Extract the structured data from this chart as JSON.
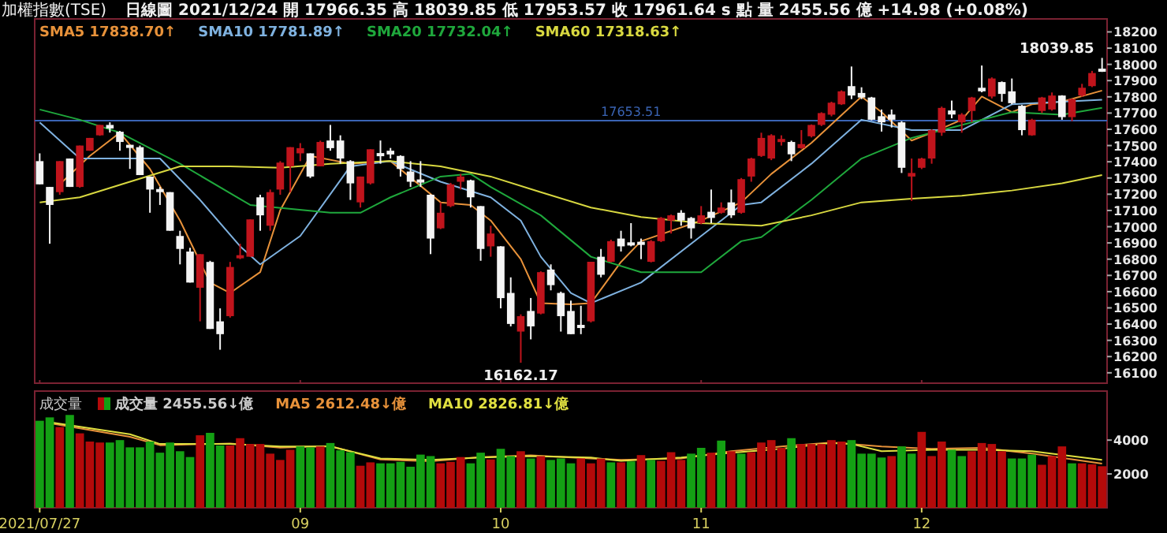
{
  "chart_data": [
    {
      "type": "candlestick",
      "title": "加權指數(TSE)",
      "subtitle": "日線圖  2021/12/24  開 17966.35  高 18039.85  低 17953.57  收 17961.64  s 點  量 2455.56 億  +14.98 (+0.08%)",
      "tick_labels": "y",
      "legend": "top left",
      "categories": [
        "2021/07/27",
        null,
        null,
        null,
        null,
        null,
        null,
        null,
        null,
        null,
        null,
        null,
        null,
        null,
        null,
        null,
        null,
        null,
        null,
        null,
        null,
        null,
        null,
        null,
        null,
        null,
        "09",
        null,
        null,
        null,
        null,
        null,
        null,
        null,
        null,
        null,
        null,
        null,
        null,
        null,
        null,
        null,
        null,
        null,
        null,
        null,
        "10",
        null,
        null,
        null,
        null,
        null,
        null,
        null,
        null,
        null,
        null,
        null,
        null,
        null,
        null,
        null,
        null,
        null,
        null,
        null,
        "11",
        null,
        null,
        null,
        null,
        null,
        null,
        null,
        null,
        null,
        null,
        null,
        null,
        null,
        null,
        null,
        null,
        null,
        null,
        null,
        null,
        null,
        "12",
        null,
        null,
        null,
        null,
        null,
        null,
        null,
        null,
        null,
        null,
        null,
        null,
        null,
        null,
        null,
        null,
        null,
        null
      ],
      "ylim": [
        16036,
        18280
      ],
      "yticks": [
        16100,
        16200,
        16300,
        16400,
        16500,
        16600,
        16700,
        16800,
        16900,
        17000,
        17100,
        17200,
        17300,
        17400,
        17500,
        17600,
        17700,
        17800,
        17900,
        18000,
        18100,
        18200
      ],
      "ohlc": [
        [
          17404,
          17452,
          17261,
          17261
        ],
        [
          17245,
          17245,
          16895,
          17134
        ],
        [
          17213,
          17404,
          17197,
          17404
        ],
        [
          17420,
          17420,
          17245,
          17245
        ],
        [
          17245,
          17500,
          17240,
          17500
        ],
        [
          17468,
          17547,
          17468,
          17547
        ],
        [
          17563,
          17627,
          17560,
          17627
        ],
        [
          17627,
          17643,
          17580,
          17605
        ],
        [
          17585,
          17590,
          17468,
          17522
        ],
        [
          17500,
          17500,
          17356,
          17490
        ],
        [
          17490,
          17500,
          17318,
          17318
        ],
        [
          17309,
          17309,
          17086,
          17229
        ],
        [
          17225,
          17245,
          17134,
          17220
        ],
        [
          17213,
          17213,
          16975,
          16975
        ],
        [
          16943,
          16975,
          16768,
          16863
        ],
        [
          16847,
          16870,
          16656,
          16656
        ],
        [
          16624,
          16831,
          16417,
          16831
        ],
        [
          16783,
          16790,
          16370,
          16370
        ],
        [
          16417,
          16497,
          16242,
          16338
        ],
        [
          16449,
          16783,
          16440,
          16752
        ],
        [
          16815,
          16895,
          16800,
          16815
        ],
        [
          16815,
          17045,
          16815,
          17045
        ],
        [
          17181,
          17197,
          16975,
          17070
        ],
        [
          17006,
          17229,
          16975,
          17213
        ],
        [
          17229,
          17404,
          17197,
          17395
        ],
        [
          17372,
          17490,
          17213,
          17490
        ],
        [
          17452,
          17515,
          17404,
          17484
        ],
        [
          17452,
          17452,
          17300,
          17309
        ],
        [
          17372,
          17530,
          17372,
          17522
        ],
        [
          17531,
          17627,
          17468,
          17484
        ],
        [
          17531,
          17563,
          17388,
          17420
        ],
        [
          17404,
          17410,
          17165,
          17267
        ],
        [
          17150,
          17309,
          17118,
          17309
        ],
        [
          17267,
          17477,
          17260,
          17477
        ],
        [
          17452,
          17531,
          17388,
          17436
        ],
        [
          17468,
          17485,
          17420,
          17445
        ],
        [
          17436,
          17440,
          17309,
          17356
        ],
        [
          17340,
          17404,
          17245,
          17277
        ],
        [
          17283,
          17404,
          17245,
          17280
        ],
        [
          17197,
          17200,
          16831,
          16927
        ],
        [
          16990,
          17150,
          16985,
          17086
        ],
        [
          17127,
          17270,
          17120,
          17261
        ],
        [
          17277,
          17325,
          17229,
          17309
        ],
        [
          17286,
          17290,
          17118,
          17181
        ],
        [
          17127,
          17127,
          16790,
          16863
        ],
        [
          16879,
          17006,
          16815,
          16958
        ],
        [
          16879,
          16880,
          16497,
          16560
        ],
        [
          16592,
          16688,
          16386,
          16401
        ],
        [
          16354,
          16460,
          16162.17,
          16449
        ],
        [
          16481,
          16561,
          16306,
          16386
        ],
        [
          16465,
          16725,
          16460,
          16720
        ],
        [
          16736,
          16768,
          16608,
          16640
        ],
        [
          16592,
          16600,
          16354,
          16449
        ],
        [
          16481,
          16545,
          16338,
          16338
        ],
        [
          16386,
          16513,
          16338,
          16385
        ],
        [
          16417,
          16784,
          16410,
          16784
        ],
        [
          16815,
          16863,
          16688,
          16704
        ],
        [
          16784,
          16920,
          16780,
          16911
        ],
        [
          16927,
          16975,
          16847,
          16879
        ],
        [
          16895,
          17022,
          16879,
          16893
        ],
        [
          16900,
          16927,
          16800,
          16895
        ],
        [
          16784,
          16918,
          16780,
          16911
        ],
        [
          16911,
          17060,
          16905,
          17054
        ],
        [
          17038,
          17075,
          16958,
          17070
        ],
        [
          17086,
          17102,
          17006,
          17038
        ],
        [
          17054,
          17060,
          16927,
          16990
        ],
        [
          17022,
          17127,
          17015,
          17070
        ],
        [
          17092,
          17229,
          17022,
          17054
        ],
        [
          17086,
          17150,
          17080,
          17118
        ],
        [
          17150,
          17229,
          17054,
          17070
        ],
        [
          17086,
          17300,
          17080,
          17293
        ],
        [
          17309,
          17425,
          17277,
          17420
        ],
        [
          17436,
          17579,
          17430,
          17547
        ],
        [
          17420,
          17570,
          17410,
          17563
        ],
        [
          17530,
          17563,
          17500,
          17532
        ],
        [
          17522,
          17530,
          17404,
          17446
        ],
        [
          17484,
          17595,
          17480,
          17509
        ],
        [
          17557,
          17630,
          17550,
          17627
        ],
        [
          17627,
          17705,
          17620,
          17700
        ],
        [
          17690,
          17770,
          17680,
          17764
        ],
        [
          17754,
          17840,
          17750,
          17834
        ],
        [
          17866,
          17987,
          17786,
          17808
        ],
        [
          17824,
          17859,
          17786,
          17796
        ],
        [
          17796,
          17800,
          17655,
          17659
        ],
        [
          17681,
          17722,
          17586,
          17643
        ],
        [
          17691,
          17722,
          17611,
          17659
        ],
        [
          17643,
          17650,
          17331,
          17363
        ],
        [
          17309,
          17420,
          17159,
          17331
        ],
        [
          17363,
          17425,
          17355,
          17420
        ],
        [
          17420,
          17600,
          17388,
          17595
        ],
        [
          17579,
          17740,
          17560,
          17732
        ],
        [
          17716,
          17777,
          17668,
          17691
        ],
        [
          17643,
          17700,
          17579,
          17691
        ],
        [
          17713,
          17800,
          17643,
          17796
        ],
        [
          17856,
          17993,
          17828,
          17834
        ],
        [
          17802,
          17920,
          17790,
          17913
        ],
        [
          17891,
          17895,
          17770,
          17818
        ],
        [
          17834,
          17913,
          17754,
          17761
        ],
        [
          17745,
          17750,
          17563,
          17595
        ],
        [
          17563,
          17665,
          17560,
          17659
        ],
        [
          17713,
          17800,
          17700,
          17796
        ],
        [
          17722,
          17827,
          17715,
          17808
        ],
        [
          17808,
          17810,
          17659,
          17675
        ],
        [
          17675,
          17790,
          17650,
          17786
        ],
        [
          17808,
          17880,
          17800,
          17856
        ],
        [
          17866,
          17960,
          17860,
          17946.66
        ],
        [
          17966.35,
          18039.85,
          17953.57,
          17961.64
        ]
      ],
      "series": [
        {
          "name": "SMA5 17838.70↑",
          "type": "line",
          "color": "#e8923a",
          "values": [
            null,
            null,
            17261,
            null,
            null,
            17436,
            null,
            null,
            17579,
            null,
            null,
            17356,
            null,
            null,
            17038,
            null,
            null,
            16656,
            null,
            16592,
            null,
            null,
            16720,
            null,
            17102,
            null,
            null,
            17436,
            null,
            null,
            null,
            17388,
            null,
            null,
            null,
            17404,
            null,
            null,
            null,
            null,
            17150,
            null,
            null,
            17134,
            null,
            17038,
            null,
            null,
            16800,
            null,
            16529,
            null,
            null,
            16522,
            null,
            16529,
            null,
            null,
            16783,
            null,
            16911,
            null,
            null,
            null,
            null,
            null,
            17038,
            null,
            null,
            null,
            17150,
            null,
            null,
            17325,
            null,
            null,
            null,
            17516,
            null,
            null,
            null,
            null,
            17802,
            null,
            17706,
            null,
            null,
            17531,
            null,
            17579,
            null,
            null,
            17659,
            null,
            17802,
            null,
            null,
            17706,
            null,
            17754,
            null,
            null,
            17770,
            null,
            null,
            null,
            17838.7
          ]
        },
        {
          "name": "SMA10 17781.89↑",
          "type": "line",
          "color": "#7fb2e0",
          "values": [
            17643,
            null,
            null,
            null,
            17420,
            null,
            null,
            null,
            null,
            null,
            null,
            null,
            17420,
            null,
            null,
            null,
            17165,
            null,
            null,
            null,
            16879,
            null,
            16768,
            null,
            null,
            null,
            16943,
            null,
            null,
            null,
            null,
            17372,
            null,
            null,
            null,
            17404,
            null,
            null,
            null,
            null,
            17277,
            null,
            null,
            null,
            null,
            17181,
            null,
            null,
            17038,
            null,
            16815,
            null,
            null,
            16592,
            null,
            16529,
            null,
            null,
            null,
            null,
            16656,
            null,
            null,
            null,
            null,
            null,
            16943,
            null,
            null,
            null,
            17134,
            null,
            17150,
            null,
            null,
            null,
            null,
            17388,
            null,
            null,
            null,
            null,
            17659,
            null,
            null,
            null,
            null,
            17595,
            null,
            null,
            null,
            null,
            17595,
            null,
            null,
            null,
            null,
            17754,
            null,
            null,
            null,
            null,
            17770,
            null,
            null,
            null,
            17781.89
          ]
        },
        {
          "name": "SMA20 17732.04↑",
          "type": "line",
          "color": "#1fa83c",
          "values": [
            17722,
            null,
            null,
            null,
            17659,
            null,
            null,
            null,
            17579,
            null,
            null,
            null,
            null,
            null,
            17388,
            null,
            null,
            null,
            null,
            null,
            null,
            17134,
            null,
            null,
            null,
            null,
            null,
            null,
            null,
            17086,
            null,
            null,
            17086,
            null,
            null,
            17181,
            null,
            null,
            null,
            null,
            17309,
            null,
            null,
            17325,
            null,
            17245,
            null,
            null,
            null,
            null,
            17070,
            null,
            null,
            null,
            null,
            16815,
            null,
            null,
            null,
            null,
            16720,
            null,
            null,
            null,
            null,
            null,
            16720,
            null,
            null,
            null,
            16911,
            null,
            16936,
            null,
            null,
            null,
            null,
            17165,
            null,
            null,
            null,
            null,
            17420,
            null,
            null,
            null,
            null,
            17547,
            null,
            null,
            null,
            null,
            17627,
            null,
            null,
            null,
            null,
            17706,
            null,
            null,
            null,
            null,
            17690,
            null,
            null,
            null,
            17732.04
          ]
        },
        {
          "name": "SMA60 17318.63↑",
          "type": "line",
          "color": "#d8d840",
          "values": [
            17150,
            null,
            null,
            null,
            17181,
            null,
            null,
            null,
            null,
            17277,
            null,
            null,
            null,
            null,
            17372,
            null,
            null,
            null,
            null,
            17372,
            null,
            null,
            null,
            null,
            17363,
            null,
            null,
            null,
            null,
            17388,
            null,
            null,
            null,
            null,
            null,
            17404,
            null,
            null,
            null,
            null,
            17372,
            null,
            null,
            null,
            null,
            17309,
            null,
            null,
            null,
            null,
            17213,
            null,
            null,
            null,
            null,
            17118,
            null,
            null,
            null,
            null,
            17060,
            null,
            null,
            null,
            null,
            null,
            17022,
            null,
            null,
            null,
            null,
            null,
            17006,
            null,
            null,
            null,
            null,
            17070,
            null,
            null,
            null,
            null,
            17150,
            null,
            null,
            null,
            null,
            17172,
            null,
            null,
            null,
            null,
            17191,
            null,
            null,
            null,
            null,
            17223,
            null,
            null,
            null,
            null,
            17267,
            null,
            null,
            null,
            17318.63
          ]
        }
      ],
      "ref_lines": [
        {
          "axis": "y",
          "value": 17653.51,
          "label": "17653.51",
          "color": "#3a64b4"
        }
      ],
      "annotations": [
        "18039.85",
        "16162.17"
      ]
    },
    {
      "type": "bar",
      "title": "成交量",
      "legend": "top left",
      "categories": [
        "2021/07/27",
        null,
        null,
        null,
        null,
        null,
        null,
        null,
        null,
        null,
        null,
        null,
        null,
        null,
        null,
        null,
        null,
        null,
        null,
        null,
        null,
        null,
        null,
        null,
        null,
        null,
        "09",
        null,
        null,
        null,
        null,
        null,
        null,
        null,
        null,
        null,
        null,
        null,
        null,
        null,
        null,
        null,
        null,
        null,
        null,
        null,
        "10",
        null,
        null,
        null,
        null,
        null,
        null,
        null,
        null,
        null,
        null,
        null,
        null,
        null,
        null,
        null,
        null,
        null,
        null,
        null,
        "11",
        null,
        null,
        null,
        null,
        null,
        null,
        null,
        null,
        null,
        null,
        null,
        null,
        null,
        null,
        null,
        null,
        null,
        null,
        null,
        null,
        null,
        "12",
        null,
        null,
        null,
        null,
        null,
        null,
        null,
        null,
        null,
        null,
        null,
        null,
        null,
        null,
        null,
        null,
        null,
        null
      ],
      "ylim": [
        0,
        6900
      ],
      "yticks": [
        2000,
        4000
      ],
      "series": [
        {
          "name": "成交量 2455.56↓億",
          "type": "bar",
          "values": [
            5145,
            5345,
            4773,
            5488,
            4401,
            3915,
            3858,
            3858,
            4001,
            3572,
            3572,
            3915,
            3257,
            3858,
            3343,
            2999,
            4287,
            4430,
            3686,
            3686,
            4115,
            3772,
            3772,
            3200,
            2828,
            3429,
            3629,
            3572,
            3629,
            3829,
            3400,
            3286,
            2485,
            2685,
            2628,
            2628,
            2714,
            2428,
            3143,
            3057,
            2628,
            2714,
            2999,
            2628,
            3257,
            2857,
            3486,
            3057,
            3343,
            2914,
            3057,
            2828,
            2914,
            2628,
            2914,
            2628,
            2914,
            2685,
            2685,
            2742,
            3114,
            2828,
            2771,
            3286,
            2828,
            3200,
            3543,
            3257,
            3972,
            3343,
            3200,
            3286,
            3858,
            4001,
            3543,
            4115,
            3772,
            3772,
            3772,
            4001,
            3915,
            4001,
            3200,
            3200,
            2971,
            3057,
            3629,
            3200,
            4487,
            3057,
            3915,
            3429,
            3057,
            3343,
            3829,
            3772,
            3343,
            2914,
            2914,
            3143,
            2542,
            3057,
            3629,
            2628,
            2628,
            2571,
            2455.56
          ],
          "colors": [
            "#14a014",
            "#14a014",
            "#b40a0a",
            "#14a014",
            "#b40a0a",
            "#b40a0a",
            "#b40a0a",
            "#14a014",
            "#14a014",
            "#14a014",
            "#14a014",
            "#14a014",
            "#14a014",
            "#14a014",
            "#14a014",
            "#14a014",
            "#b40a0a",
            "#14a014",
            "#14a014",
            "#b40a0a",
            "#b40a0a",
            "#b40a0a",
            "#b40a0a",
            "#b40a0a",
            "#b40a0a",
            "#b40a0a",
            "#14a014",
            "#14a014",
            "#b40a0a",
            "#14a014",
            "#14a014",
            "#14a014",
            "#b40a0a",
            "#b40a0a",
            "#14a014",
            "#14a014",
            "#14a014",
            "#14a014",
            "#14a014",
            "#14a014",
            "#b40a0a",
            "#b40a0a",
            "#b40a0a",
            "#14a014",
            "#14a014",
            "#b40a0a",
            "#14a014",
            "#14a014",
            "#b40a0a",
            "#14a014",
            "#b40a0a",
            "#14a014",
            "#14a014",
            "#14a014",
            "#b40a0a",
            "#b40a0a",
            "#b40a0a",
            "#14a014",
            "#b40a0a",
            "#14a014",
            "#b40a0a",
            "#14a014",
            "#b40a0a",
            "#b40a0a",
            "#b40a0a",
            "#14a014",
            "#14a014",
            "#b40a0a",
            "#14a014",
            "#b40a0a",
            "#14a014",
            "#b40a0a",
            "#b40a0a",
            "#b40a0a",
            "#b40a0a",
            "#14a014",
            "#b40a0a",
            "#b40a0a",
            "#b40a0a",
            "#b40a0a",
            "#b40a0a",
            "#14a014",
            "#14a014",
            "#14a014",
            "#14a014",
            "#b40a0a",
            "#14a014",
            "#14a014",
            "#b40a0a",
            "#b40a0a",
            "#b40a0a",
            "#14a014",
            "#14a014",
            "#b40a0a",
            "#b40a0a",
            "#b40a0a",
            "#b40a0a",
            "#14a014",
            "#14a014",
            "#14a014",
            "#b40a0a",
            "#b40a0a",
            "#b40a0a",
            "#14a014",
            "#b40a0a",
            "#b40a0a",
            "#b40a0a"
          ]
        },
        {
          "name": "MA5 2612.48↓億",
          "type": "line",
          "color": "#e8923a",
          "values": [
            null,
            5000,
            null,
            null,
            null,
            null,
            null,
            null,
            null,
            4200,
            null,
            null,
            3700,
            null,
            null,
            null,
            null,
            null,
            null,
            3800,
            null,
            null,
            null,
            null,
            3550,
            null,
            null,
            null,
            null,
            3650,
            null,
            null,
            null,
            null,
            2850,
            null,
            null,
            null,
            null,
            2750,
            null,
            null,
            null,
            null,
            3000,
            null,
            null,
            null,
            null,
            3100,
            null,
            null,
            null,
            null,
            null,
            2914,
            null,
            null,
            2828,
            null,
            null,
            null,
            null,
            null,
            2914,
            null,
            null,
            null,
            null,
            3343,
            null,
            null,
            null,
            null,
            3629,
            null,
            null,
            null,
            null,
            3858,
            null,
            null,
            null,
            null,
            3629,
            null,
            null,
            null,
            null,
            3486,
            null,
            null,
            null,
            null,
            3543,
            null,
            null,
            null,
            null,
            3200,
            null,
            null,
            null,
            null,
            null,
            null,
            2612.48
          ]
        },
        {
          "name": "MA10 2826.81↓億",
          "type": "line",
          "color": "#e0e040",
          "values": [
            null,
            5060,
            null,
            null,
            null,
            null,
            null,
            null,
            null,
            4345,
            null,
            null,
            3772,
            null,
            null,
            null,
            null,
            null,
            null,
            3772,
            null,
            null,
            null,
            null,
            3629,
            null,
            null,
            null,
            null,
            3629,
            null,
            null,
            null,
            null,
            2914,
            null,
            null,
            null,
            null,
            2828,
            null,
            null,
            null,
            null,
            2971,
            null,
            null,
            null,
            null,
            3057,
            null,
            null,
            null,
            null,
            null,
            2971,
            null,
            null,
            2771,
            null,
            null,
            null,
            null,
            null,
            2971,
            null,
            null,
            null,
            null,
            3257,
            null,
            null,
            null,
            null,
            3486,
            null,
            null,
            null,
            null,
            3829,
            null,
            3772,
            null,
            null,
            3343,
            null,
            null,
            null,
            null,
            3429,
            null,
            null,
            null,
            null,
            3429,
            null,
            null,
            null,
            null,
            3343,
            null,
            null,
            null,
            null,
            null,
            null,
            2826.81
          ]
        }
      ]
    }
  ]
}
